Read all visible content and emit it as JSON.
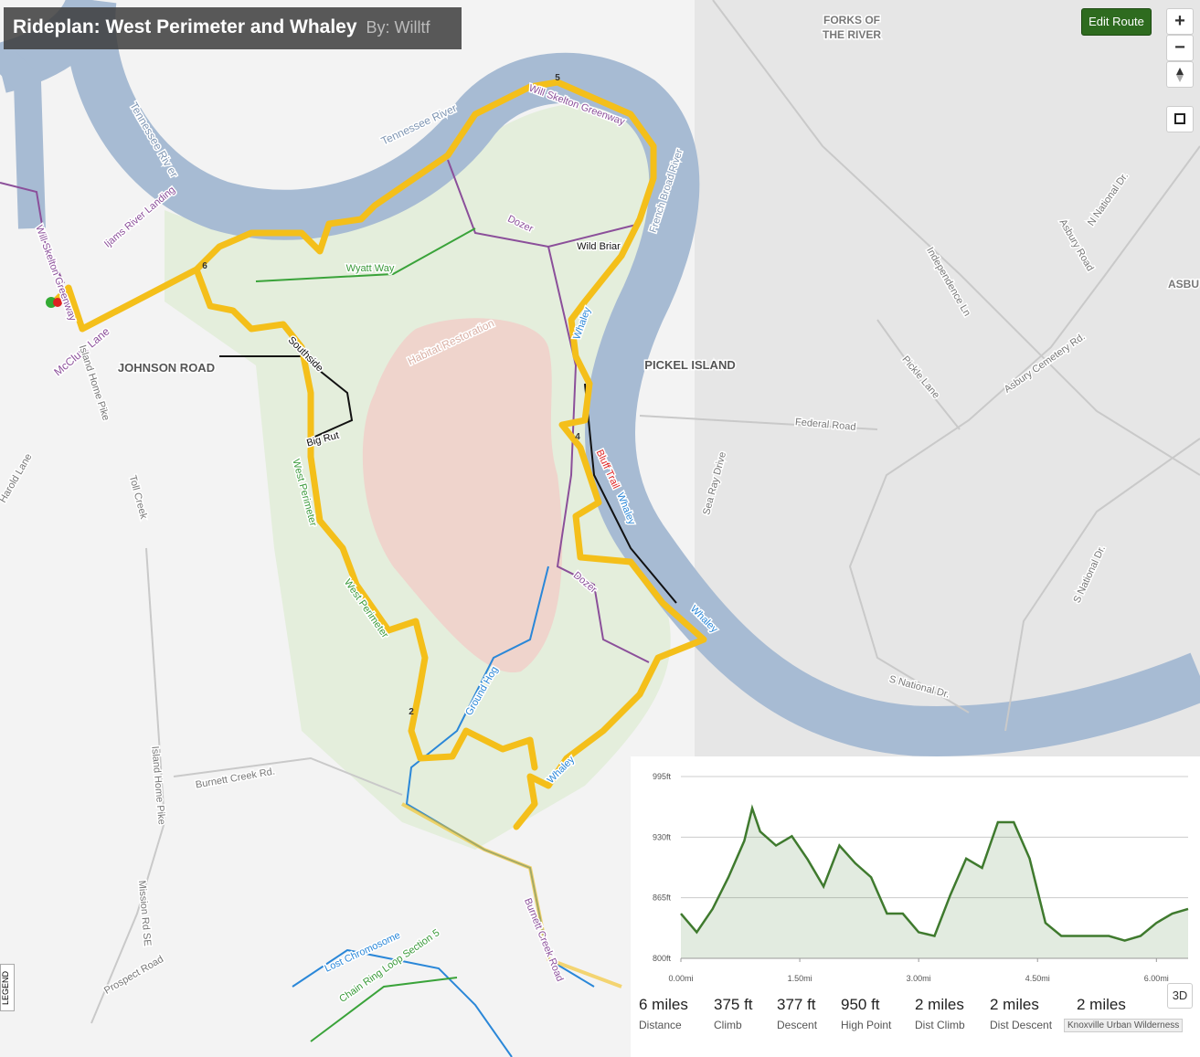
{
  "header": {
    "title": "Rideplan: West Perimeter and Whaley",
    "author": "By: Willtf"
  },
  "controls": {
    "edit_route": "Edit Route",
    "zoom_in": "+",
    "zoom_out": "−",
    "three_d": "3D",
    "legend": "LEGEND"
  },
  "map_labels": [
    "FORKS OF",
    "THE RIVER",
    "Tennessee River",
    "Tennessee Riv er",
    "Will Skelton Greenway",
    "French Broad River",
    "Dozer",
    "Wild Briar",
    "Wyatt Way",
    "Ijams River Landing",
    "Will Skelton Greenway",
    "McClure Lane",
    "JOHNSON ROAD",
    "Island Home Pike",
    "Whaley",
    "Habitat Restoration",
    "PICKEL ISLAND",
    "Federal Road",
    "Bluff Trail",
    "Whaley",
    "Big Rut",
    "Southside",
    "West Perimeter",
    "West Perimeter",
    "Dozer",
    "Whaley",
    "Ground Hog",
    "Whaley",
    "Harold Lane",
    "Toll Creek",
    "Burnett Creek Rd.",
    "Island Home Pike",
    "Mission Rd SE",
    "Prospect Road",
    "Burnett Creek Road",
    "Lost Chromosome",
    "Chain Ring Loop Section 5",
    "Asbury Road",
    "N National Dr.",
    "Independence Ln",
    "ASBU",
    "Pickle Lane",
    "Asbury Cemetery Rd.",
    "Sea Ray Drive",
    "S National Dr.",
    "S National Dr."
  ],
  "route_markers": [
    "6",
    "5",
    "4",
    "2"
  ],
  "chart_data": {
    "type": "area",
    "x": [
      0,
      0.2,
      0.4,
      0.6,
      0.8,
      0.9,
      1.0,
      1.2,
      1.4,
      1.6,
      1.8,
      2.0,
      2.2,
      2.4,
      2.6,
      2.8,
      3.0,
      3.2,
      3.4,
      3.6,
      3.8,
      4.0,
      4.2,
      4.4,
      4.6,
      4.8,
      5.0,
      5.2,
      5.4,
      5.6,
      5.8,
      6.0,
      6.2,
      6.4
    ],
    "values": [
      848,
      828,
      853,
      887,
      926,
      961,
      936,
      921,
      931,
      906,
      877,
      921,
      902,
      887,
      848,
      848,
      828,
      824,
      868,
      907,
      897,
      946,
      946,
      907,
      838,
      824,
      824,
      824,
      824,
      819,
      824,
      838,
      848,
      853
    ],
    "color": "#3f7a2e",
    "xlim": [
      0,
      6.4
    ],
    "ylim": [
      800,
      995
    ],
    "xticks": [
      {
        "value": 0,
        "label": "0.00mi"
      },
      {
        "value": 1.5,
        "label": "1.50mi"
      },
      {
        "value": 3,
        "label": "3.00mi"
      },
      {
        "value": 4.5,
        "label": "4.50mi"
      },
      {
        "value": 6,
        "label": "6.00mi"
      }
    ],
    "yticks": [
      {
        "value": 800,
        "label": "800ft"
      },
      {
        "value": 865,
        "label": "865ft"
      },
      {
        "value": 930,
        "label": "930ft"
      },
      {
        "value": 995,
        "label": "995ft"
      }
    ],
    "grid": true
  },
  "stats": [
    {
      "value": "6 miles",
      "label": "Distance"
    },
    {
      "value": "375 ft",
      "label": "Climb"
    },
    {
      "value": "377 ft",
      "label": "Descent"
    },
    {
      "value": "950 ft",
      "label": "High Point"
    },
    {
      "value": "2 miles",
      "label": "Dist Climb"
    },
    {
      "value": "2 miles",
      "label": "Dist Descent"
    },
    {
      "value": "2 miles",
      "label": "Knoxville Urban Wilderness"
    }
  ]
}
